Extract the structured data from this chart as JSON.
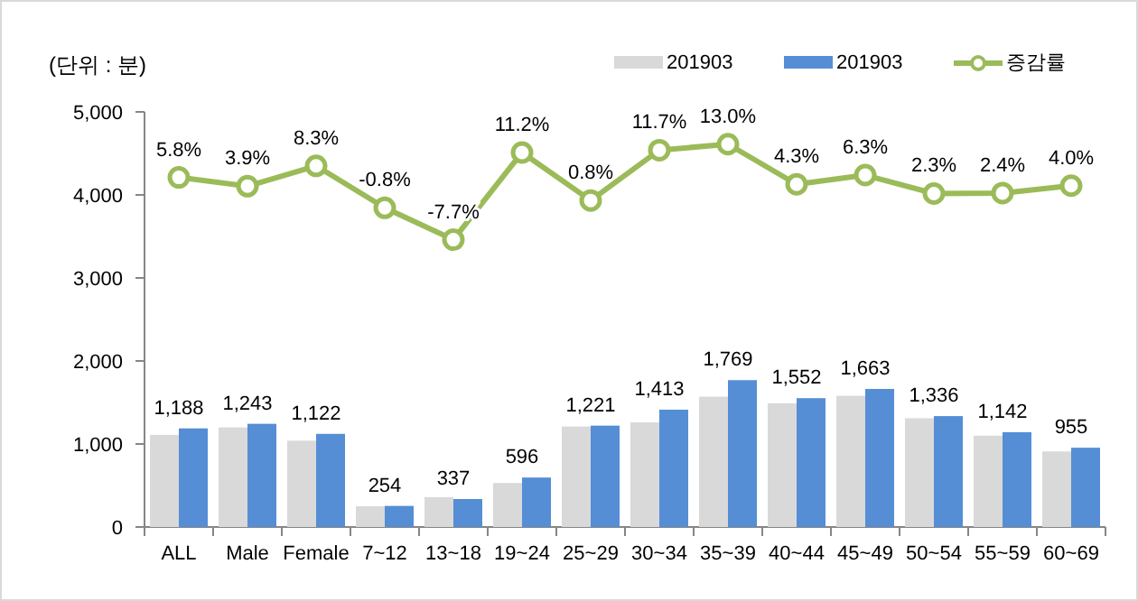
{
  "chart_data": {
    "type": "bar",
    "categories": [
      "ALL",
      "Male",
      "Female",
      "7~12",
      "13~18",
      "19~24",
      "25~29",
      "30~34",
      "35~39",
      "40~44",
      "45~49",
      "50~54",
      "55~59",
      "60~69"
    ],
    "series": [
      {
        "name": "201903",
        "color": "#d9d9d9",
        "values": [
          1110,
          1200,
          1040,
          250,
          360,
          530,
          1210,
          1260,
          1570,
          1490,
          1580,
          1310,
          1100,
          910
        ]
      },
      {
        "name": "201903",
        "color": "#558ed5",
        "values": [
          1188,
          1243,
          1122,
          254,
          337,
          596,
          1221,
          1413,
          1769,
          1552,
          1663,
          1336,
          1142,
          955
        ],
        "value_labels": [
          "1,188",
          "1,243",
          "1,122",
          "254",
          "337",
          "596",
          "1,221",
          "1,413",
          "1,769",
          "1,552",
          "1,663",
          "1,336",
          "1,142",
          "955"
        ]
      },
      {
        "name": "증감률",
        "type": "line",
        "axis": "y2",
        "color": "#9bbb59",
        "marker": "circle",
        "values": [
          5.8,
          3.9,
          8.3,
          -0.8,
          -7.7,
          11.2,
          0.8,
          11.7,
          13.0,
          4.3,
          6.3,
          2.3,
          2.4,
          4.0
        ],
        "value_labels": [
          "5.8%",
          "3.9%",
          "8.3%",
          "-0.8%",
          "-7.7%",
          "11.2%",
          "0.8%",
          "11.7%",
          "13.0%",
          "4.3%",
          "6.3%",
          "2.3%",
          "2.4%",
          "4.0%"
        ]
      }
    ],
    "ylim": [
      0,
      5000
    ],
    "yticks": [
      {
        "value": 0,
        "label": "0"
      },
      {
        "value": 1000,
        "label": "1,000"
      },
      {
        "value": 2000,
        "label": "2,000"
      },
      {
        "value": 3000,
        "label": "3,000"
      },
      {
        "value": 4000,
        "label": "4,000"
      },
      {
        "value": 5000,
        "label": "5,000"
      }
    ],
    "y2lim": [
      -70,
      20
    ],
    "legend": "top right",
    "grid": false,
    "annotations": [
      "(단위 : 분)"
    ]
  }
}
